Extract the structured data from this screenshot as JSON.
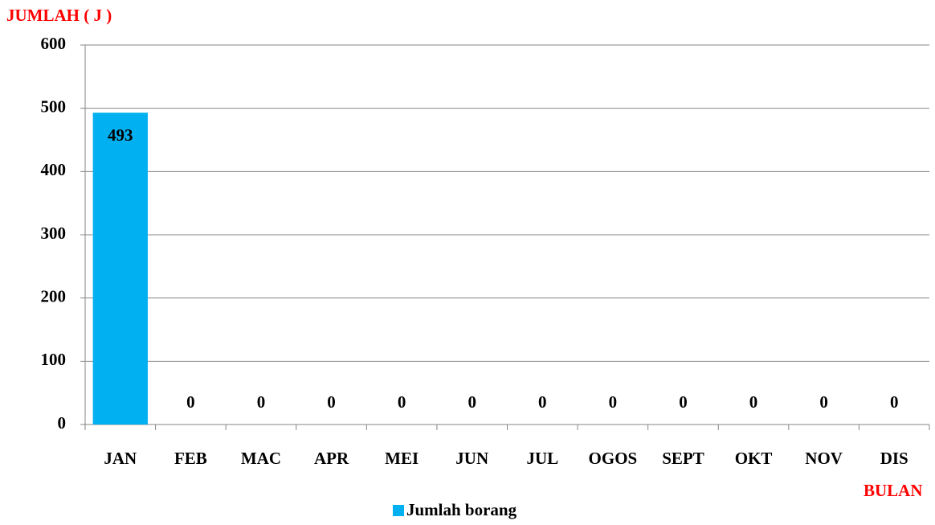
{
  "chart_data": {
    "type": "bar",
    "y_label": "JUMLAH ( J )",
    "x_label": "BULAN",
    "categories": [
      "JAN",
      "FEB",
      "MAC",
      "APR",
      "MEI",
      "JUN",
      "JUL",
      "OGOS",
      "SEPT",
      "OKT",
      "NOV",
      "DIS"
    ],
    "series": [
      {
        "name": "Jumlah borang",
        "color": "#00b0f0",
        "values": [
          493,
          0,
          0,
          0,
          0,
          0,
          0,
          0,
          0,
          0,
          0,
          0
        ]
      }
    ],
    "ylim": [
      0,
      600
    ],
    "yticks": [
      0,
      100,
      200,
      300,
      400,
      500,
      600
    ],
    "grid": true,
    "legend": "bottom"
  }
}
